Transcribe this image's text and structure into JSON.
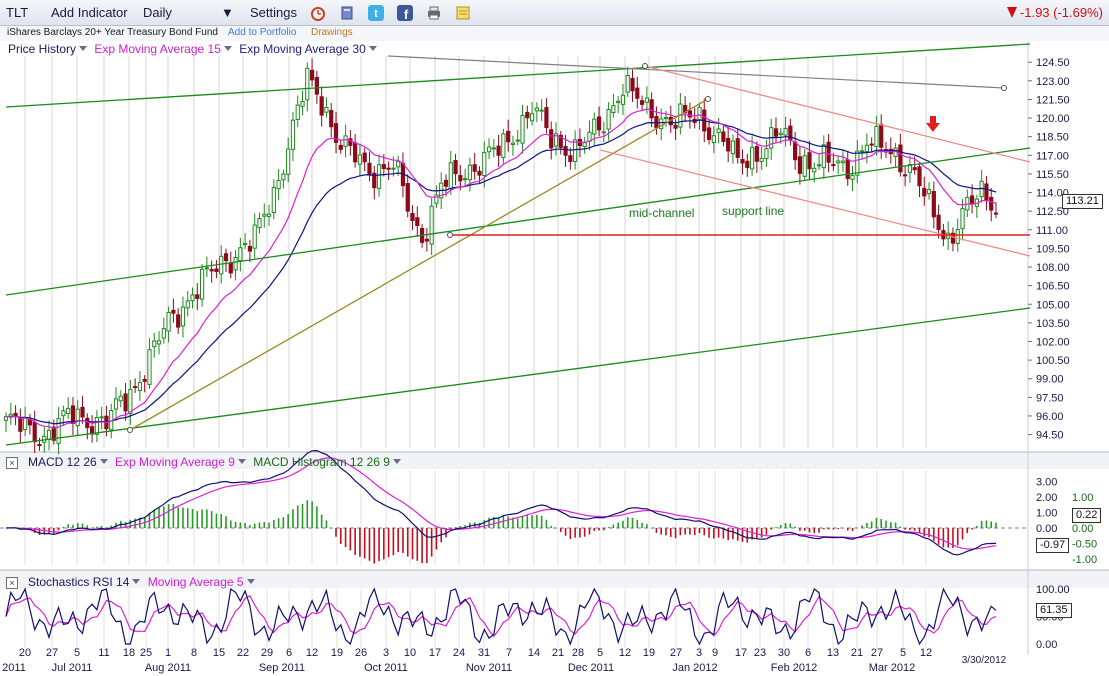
{
  "toolbar": {
    "symbol": "TLT",
    "add_indicator": "Add Indicator",
    "interval": "Daily",
    "settings": "Settings",
    "icons": [
      "alarm-clock-icon",
      "book-icon",
      "twitter-icon",
      "facebook-icon",
      "print-icon",
      "notes-icon"
    ],
    "change": "-1.93 (-1.69%)",
    "change_color": "#d01010"
  },
  "subbar": {
    "fund_name": "iShares Barclays 20+ Year Treasury Bond Fund",
    "add_to_portfolio": "Add to Portfolio",
    "drawings": "Drawings"
  },
  "price_pane": {
    "labels": [
      {
        "text": "Price History",
        "color": "#1a1a5a"
      },
      {
        "text": "Exp Moving Average 15",
        "color": "#d020d0"
      },
      {
        "text": "Exp Moving Average 30",
        "color": "#202080"
      }
    ],
    "last_price": "113.21",
    "annotations": {
      "mid_channel": "mid-channel",
      "support_line": "support line"
    },
    "colors": {
      "up": "#1f8a1f",
      "down": "#8c0a1a",
      "ema15": "#e020d8",
      "ema30": "#101080",
      "channel": "#1a8a1a",
      "trend": "#9a8a20",
      "down_channel": "#f08a8a",
      "support": "#e02020",
      "top_line": "#808080",
      "marker": "#e02020"
    }
  },
  "macd_pane": {
    "labels": [
      {
        "text": "MACD 12 26",
        "color": "#1a1a5a"
      },
      {
        "text": "Exp Moving Average 9",
        "color": "#d020d0"
      },
      {
        "text": "MACD Histogram 12 26 9",
        "color": "#1a6a1a"
      }
    ],
    "last_macd": "-0.97",
    "last_hist": "0.22"
  },
  "stoch_pane": {
    "labels": [
      {
        "text": "Stochastics RSI 14",
        "color": "#1a1a5a"
      },
      {
        "text": "Moving Average 5",
        "color": "#d020d0"
      }
    ],
    "last_value": "61.35"
  },
  "chart_data": {
    "type": "candlestick",
    "title": "TLT",
    "x_axis": {
      "day_labels": [
        "20",
        "27",
        "5",
        "11",
        "18",
        "25",
        "1",
        "8",
        "15",
        "22",
        "29",
        "6",
        "12",
        "19",
        "26",
        "3",
        "10",
        "17",
        "24",
        "31",
        "7",
        "14",
        "21",
        "28",
        "5",
        "12",
        "19",
        "27",
        "3",
        "9",
        "17",
        "23",
        "30",
        "6",
        "13",
        "21",
        "27",
        "5",
        "12"
      ],
      "month_labels": [
        "2011",
        "Jul 2011",
        "Aug 2011",
        "Sep 2011",
        "Oct 2011",
        "Nov 2011",
        "Dec 2011",
        "Jan 2012",
        "Feb 2012",
        "Mar 2012"
      ],
      "last_date": "3/30/2012"
    },
    "price_axis": {
      "ticks": [
        "124.50",
        "123.00",
        "121.50",
        "120.00",
        "118.50",
        "117.00",
        "115.50",
        "114.00",
        "112.50",
        "111.00",
        "109.50",
        "108.00",
        "106.50",
        "105.00",
        "103.50",
        "102.00",
        "100.50",
        "99.00",
        "97.50",
        "96.00",
        "94.50"
      ],
      "range": [
        93.5,
        125
      ]
    },
    "close_anchors": [
      [
        0,
        95.6
      ],
      [
        8,
        94.4
      ],
      [
        14,
        96.1
      ],
      [
        21,
        95.4
      ],
      [
        27,
        98.5
      ],
      [
        34,
        103.5
      ],
      [
        40,
        106.4
      ],
      [
        46,
        108.6
      ],
      [
        52,
        110.2
      ],
      [
        56,
        114
      ],
      [
        61,
        120.5
      ],
      [
        63,
        123
      ],
      [
        66,
        121.5
      ],
      [
        70,
        117.8
      ],
      [
        76,
        115.8
      ],
      [
        81,
        116.2
      ],
      [
        85,
        111.8
      ],
      [
        87,
        110.5
      ],
      [
        91,
        114.5
      ],
      [
        97,
        116
      ],
      [
        104,
        117.6
      ],
      [
        110,
        120.9
      ],
      [
        114,
        118.2
      ],
      [
        119,
        117.5
      ],
      [
        124,
        119
      ],
      [
        129,
        122.8
      ],
      [
        134,
        120.5
      ],
      [
        140,
        119.8
      ],
      [
        145,
        120
      ],
      [
        150,
        118.3
      ],
      [
        153,
        116.2
      ],
      [
        158,
        117.6
      ],
      [
        162,
        118.8
      ],
      [
        166,
        116.6
      ],
      [
        171,
        116.4
      ],
      [
        176,
        116
      ],
      [
        180,
        118
      ],
      [
        186,
        117.2
      ],
      [
        190,
        115.4
      ],
      [
        193,
        112.8
      ],
      [
        197,
        110.3
      ],
      [
        200,
        112.2
      ],
      [
        204,
        113.9
      ],
      [
        207,
        113.2
      ]
    ],
    "ema15_last": 112.8,
    "ema30_last": 114.1,
    "macd": {
      "axis_left": [
        "3.00",
        "2.00",
        "1.00",
        "0.00",
        "-1.00"
      ],
      "axis_right": [
        "1.00",
        "0.50",
        "0.00",
        "-0.50",
        "-1.00"
      ],
      "last_macd": -0.97,
      "last_histogram": 0.22
    },
    "stoch_rsi": {
      "axis": [
        "100.00",
        "50.00",
        "0.00"
      ],
      "last": 61.35
    }
  }
}
